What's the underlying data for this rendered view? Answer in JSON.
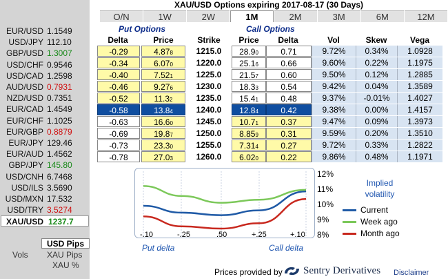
{
  "title": "XAU/USD Options expiring 2017-08-17 (30 Days)",
  "tabs": [
    {
      "label": "O/N",
      "active": false
    },
    {
      "label": "1W",
      "active": false
    },
    {
      "label": "2W",
      "active": false
    },
    {
      "label": "1M",
      "active": true
    },
    {
      "label": "2M",
      "active": false
    },
    {
      "label": "3M",
      "active": false
    },
    {
      "label": "6M",
      "active": false
    },
    {
      "label": "12M",
      "active": false
    }
  ],
  "sidebar": {
    "pairs": [
      {
        "name": "EUR/USD",
        "price": "1.1549",
        "dir": "none"
      },
      {
        "name": "USD/JPY",
        "price": "112.10",
        "dir": "none"
      },
      {
        "name": "GBP/USD",
        "price": "1.3007",
        "dir": "up"
      },
      {
        "name": "USD/CHF",
        "price": "0.9546",
        "dir": "none"
      },
      {
        "name": "USD/CAD",
        "price": "1.2598",
        "dir": "none"
      },
      {
        "name": "AUD/USD",
        "price": "0.7931",
        "dir": "down"
      },
      {
        "name": "NZD/USD",
        "price": "0.7351",
        "dir": "none"
      },
      {
        "name": "EUR/CAD",
        "price": "1.4549",
        "dir": "none"
      },
      {
        "name": "EUR/CHF",
        "price": "1.1025",
        "dir": "none"
      },
      {
        "name": "EUR/GBP",
        "price": "0.8879",
        "dir": "down"
      },
      {
        "name": "EUR/JPY",
        "price": "129.46",
        "dir": "none"
      },
      {
        "name": "EUR/AUD",
        "price": "1.4562",
        "dir": "none"
      },
      {
        "name": "GBP/JPY",
        "price": "145.80",
        "dir": "up"
      },
      {
        "name": "USD/CNH",
        "price": "6.7468",
        "dir": "none"
      },
      {
        "name": "USD/ILS",
        "price": "3.5690",
        "dir": "none"
      },
      {
        "name": "USD/MXN",
        "price": "17.532",
        "dir": "none"
      },
      {
        "name": "USD/TRY",
        "price": "3.5274",
        "dir": "down"
      },
      {
        "name": "XAU/USD",
        "price": "1237.7",
        "dir": "up",
        "selected": true
      }
    ],
    "usd_pips_label": "USD Pips",
    "vols_label": "Vols",
    "xau_pips_label": "XAU Pips",
    "xau_pct_label": "XAU %"
  },
  "table": {
    "put_group": "Put Options",
    "call_group": "Call Options",
    "headers": {
      "put_delta": "Delta",
      "put_price": "Price",
      "strike": "Strike",
      "call_price": "Price",
      "call_delta": "Delta",
      "vol": "Vol",
      "skew": "Skew",
      "vega": "Vega"
    },
    "rows": [
      {
        "put_delta": "-0.29",
        "put_price": "4.87",
        "put_sub": "8",
        "strike": "1215.0",
        "call_price": "28.9",
        "call_sub": "0",
        "call_delta": "0.71",
        "vol": "9.72%",
        "skew": "0.34%",
        "vega": "1.0928",
        "atm": false
      },
      {
        "put_delta": "-0.34",
        "put_price": "6.07",
        "put_sub": "0",
        "strike": "1220.0",
        "call_price": "25.1",
        "call_sub": "6",
        "call_delta": "0.66",
        "vol": "9.60%",
        "skew": "0.22%",
        "vega": "1.1975",
        "atm": false
      },
      {
        "put_delta": "-0.40",
        "put_price": "7.52",
        "put_sub": "1",
        "strike": "1225.0",
        "call_price": "21.5",
        "call_sub": "7",
        "call_delta": "0.60",
        "vol": "9.50%",
        "skew": "0.12%",
        "vega": "1.2885",
        "atm": false
      },
      {
        "put_delta": "-0.46",
        "put_price": "9.27",
        "put_sub": "6",
        "strike": "1230.0",
        "call_price": "18.3",
        "call_sub": "3",
        "call_delta": "0.54",
        "vol": "9.42%",
        "skew": "0.04%",
        "vega": "1.3589",
        "atm": false
      },
      {
        "put_delta": "-0.52",
        "put_price": "11.3",
        "put_sub": "2",
        "strike": "1235.0",
        "call_price": "15.4",
        "call_sub": "1",
        "call_delta": "0.48",
        "vol": "9.37%",
        "skew": "-0.01%",
        "vega": "1.4027",
        "atm": false
      },
      {
        "put_delta": "-0.58",
        "put_price": "13.8",
        "put_sub": "4",
        "strike": "1240.0",
        "call_price": "12.8",
        "call_sub": "4",
        "call_delta": "0.42",
        "vol": "9.38%",
        "skew": "0.00%",
        "vega": "1.4157",
        "atm": true
      },
      {
        "put_delta": "-0.63",
        "put_price": "16.6",
        "put_sub": "0",
        "strike": "1245.0",
        "call_price": "10.7",
        "call_sub": "1",
        "call_delta": "0.37",
        "vol": "9.47%",
        "skew": "0.09%",
        "vega": "1.3973",
        "atm": false
      },
      {
        "put_delta": "-0.69",
        "put_price": "19.8",
        "put_sub": "7",
        "strike": "1250.0",
        "call_price": "8.85",
        "call_sub": "9",
        "call_delta": "0.31",
        "vol": "9.59%",
        "skew": "0.20%",
        "vega": "1.3510",
        "atm": false
      },
      {
        "put_delta": "-0.73",
        "put_price": "23.3",
        "put_sub": "0",
        "strike": "1255.0",
        "call_price": "7.31",
        "call_sub": "4",
        "call_delta": "0.27",
        "vol": "9.72%",
        "skew": "0.33%",
        "vega": "1.2822",
        "atm": false
      },
      {
        "put_delta": "-0.78",
        "put_price": "27.0",
        "put_sub": "3",
        "strike": "1260.0",
        "call_price": "6.02",
        "call_sub": "0",
        "call_delta": "0.22",
        "vol": "9.86%",
        "skew": "0.48%",
        "vega": "1.1971",
        "atm": false
      }
    ]
  },
  "chart": {
    "title_line1": "Implied",
    "title_line2": "volatility",
    "y_ticks": [
      "12%",
      "11%",
      "10%",
      "9%",
      "8%"
    ],
    "x_ticks": [
      "-.10",
      "-.25",
      ".50",
      "+.25",
      "+.10"
    ],
    "put_delta_label": "Put delta",
    "call_delta_label": "Call delta",
    "legend": [
      {
        "name": "Current",
        "color": "#1f5aa6"
      },
      {
        "name": "Week ago",
        "color": "#7cc85a"
      },
      {
        "name": "Month ago",
        "color": "#c8281e"
      }
    ]
  },
  "chart_data": {
    "type": "line",
    "x": [
      "-.10",
      "-.25",
      ".50",
      "+.25",
      "+.10"
    ],
    "ylim": [
      8,
      12
    ],
    "series": [
      {
        "name": "Current",
        "values": [
          10.0,
          9.55,
          9.38,
          9.7,
          10.95
        ]
      },
      {
        "name": "Week ago",
        "values": [
          11.3,
          10.65,
          10.2,
          10.4,
          11.05
        ]
      },
      {
        "name": "Month ago",
        "values": [
          9.3,
          8.65,
          8.5,
          8.85,
          10.45
        ]
      }
    ]
  },
  "footer": {
    "provided_by": "Prices provided by",
    "brand": "Sentry Derivatives",
    "disclaimer": "Disclaimer"
  }
}
